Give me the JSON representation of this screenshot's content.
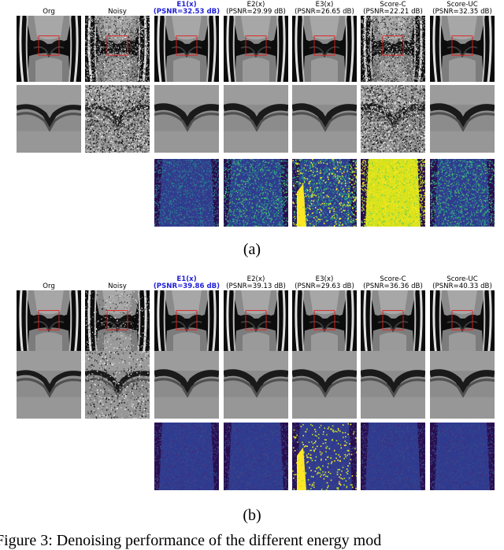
{
  "panels": [
    {
      "sub_label": "(a)",
      "columns": [
        {
          "method": "Org",
          "psnr": "",
          "best": false
        },
        {
          "method": "Noisy",
          "psnr": "",
          "best": false
        },
        {
          "method": "E1(x)",
          "psnr": "(PSNR=32.53 dB)",
          "best": true
        },
        {
          "method": "E2(x)",
          "psnr": "(PSNR=29.99 dB)",
          "best": false
        },
        {
          "method": "E3(x)",
          "psnr": "(PSNR=26.65 dB)",
          "best": false
        },
        {
          "method": "Score-C",
          "psnr": "(PSNR=22.21 dB)",
          "best": false
        },
        {
          "method": "Score-UC",
          "psnr": "(PSNR=32.35 dB)",
          "best": false
        }
      ]
    },
    {
      "sub_label": "(b)",
      "columns": [
        {
          "method": "Org",
          "psnr": "",
          "best": false
        },
        {
          "method": "Noisy",
          "psnr": "",
          "best": false
        },
        {
          "method": "E1(x)",
          "psnr": "(PSNR=39.86 dB)",
          "best": true
        },
        {
          "method": "E2(x)",
          "psnr": "(PSNR=39.13 dB)",
          "best": false
        },
        {
          "method": "E3(x)",
          "psnr": "(PSNR=29.63 dB)",
          "best": false
        },
        {
          "method": "Score-C",
          "psnr": "(PSNR=36.36 dB)",
          "best": false
        },
        {
          "method": "Score-UC",
          "psnr": "(PSNR=40.33 dB)",
          "best": false
        }
      ]
    }
  ],
  "caption": "Figure 3: Denoising performance of the different energy mod",
  "colors": {
    "best_label": "#1f1fd6",
    "roi_box": "#e0201f"
  }
}
